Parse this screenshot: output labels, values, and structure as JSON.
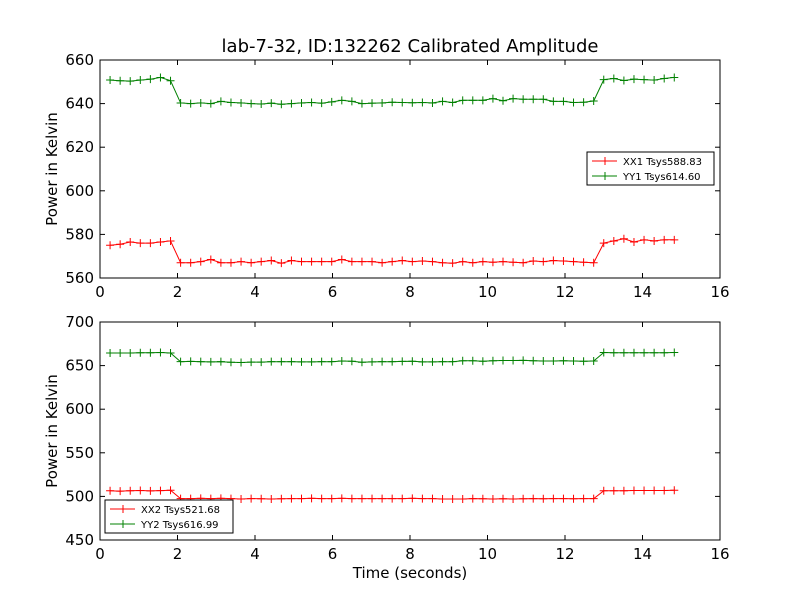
{
  "chart_data": [
    {
      "type": "line",
      "title": "lab-7-32, ID:132262 Calibrated Amplitude",
      "xlabel": "",
      "ylabel": "Power in Kelvin",
      "xlim": [
        0,
        16
      ],
      "ylim": [
        560,
        660
      ],
      "xticks": [
        "0",
        "2",
        "4",
        "6",
        "8",
        "10",
        "12",
        "14",
        "16"
      ],
      "yticks": [
        "560",
        "580",
        "600",
        "620",
        "640",
        "660"
      ],
      "legend_position": "center-right",
      "x": [
        0.26,
        0.52,
        0.78,
        1.04,
        1.3,
        1.56,
        1.82,
        2.08,
        2.34,
        2.6,
        2.86,
        3.12,
        3.38,
        3.64,
        3.9,
        4.16,
        4.42,
        4.68,
        4.94,
        5.2,
        5.46,
        5.72,
        5.98,
        6.24,
        6.5,
        6.76,
        7.02,
        7.28,
        7.54,
        7.8,
        8.06,
        8.32,
        8.58,
        8.84,
        9.1,
        9.36,
        9.62,
        9.88,
        10.14,
        10.4,
        10.66,
        10.92,
        11.18,
        11.44,
        11.7,
        11.96,
        12.22,
        12.48,
        12.74,
        13.0,
        13.26,
        13.52,
        13.78,
        14.04,
        14.3,
        14.56,
        14.82
      ],
      "series": [
        {
          "name": "XX1 Tsys588.83",
          "color": "#ff0000",
          "values": [
            575.0,
            575.5,
            576.5,
            576.0,
            576.0,
            576.5,
            577.0,
            567.0,
            567.0,
            567.5,
            568.5,
            567.0,
            567.0,
            567.5,
            567.0,
            567.5,
            568.0,
            566.8,
            568.0,
            567.5,
            567.5,
            567.5,
            567.5,
            568.5,
            567.5,
            567.5,
            567.5,
            567.0,
            567.5,
            568.0,
            567.5,
            567.8,
            567.5,
            567.0,
            566.8,
            567.5,
            567.0,
            567.5,
            567.2,
            567.5,
            567.2,
            567.0,
            567.8,
            567.5,
            568.0,
            567.8,
            567.5,
            567.2,
            567.0,
            576.0,
            577.0,
            578.0,
            576.5,
            577.5,
            577.0,
            577.5,
            577.5
          ]
        },
        {
          "name": "YY1 Tsys614.60",
          "color": "#008000",
          "values": [
            650.8,
            650.5,
            650.3,
            650.8,
            651.2,
            652.0,
            650.5,
            640.3,
            640.0,
            640.3,
            640.0,
            641.0,
            640.5,
            640.3,
            640.0,
            639.8,
            640.2,
            639.7,
            640.0,
            640.3,
            640.5,
            640.2,
            640.8,
            641.5,
            641.0,
            640.0,
            640.2,
            640.3,
            640.6,
            640.5,
            640.4,
            640.5,
            640.3,
            641.0,
            640.5,
            641.5,
            641.5,
            641.5,
            642.3,
            641.3,
            642.3,
            642.0,
            642.0,
            642.0,
            641.0,
            641.0,
            640.5,
            640.6,
            641.2,
            651.0,
            651.5,
            650.6,
            651.2,
            651.0,
            650.8,
            651.5,
            652.0
          ]
        }
      ]
    },
    {
      "type": "line",
      "title": "",
      "xlabel": "Time (seconds)",
      "ylabel": "Power in Kelvin",
      "xlim": [
        0,
        16
      ],
      "ylim": [
        450,
        700
      ],
      "xticks": [
        "0",
        "2",
        "4",
        "6",
        "8",
        "10",
        "12",
        "14",
        "16"
      ],
      "yticks": [
        "450",
        "500",
        "550",
        "600",
        "650",
        "700"
      ],
      "legend_position": "lower-left",
      "x": [
        0.26,
        0.52,
        0.78,
        1.04,
        1.3,
        1.56,
        1.82,
        2.08,
        2.34,
        2.6,
        2.86,
        3.12,
        3.38,
        3.64,
        3.9,
        4.16,
        4.42,
        4.68,
        4.94,
        5.2,
        5.46,
        5.72,
        5.98,
        6.24,
        6.5,
        6.76,
        7.02,
        7.28,
        7.54,
        7.8,
        8.06,
        8.32,
        8.58,
        8.84,
        9.1,
        9.36,
        9.62,
        9.88,
        10.14,
        10.4,
        10.66,
        10.92,
        11.18,
        11.44,
        11.7,
        11.96,
        12.22,
        12.48,
        12.74,
        13.0,
        13.26,
        13.52,
        13.78,
        14.04,
        14.3,
        14.56,
        14.82
      ],
      "series": [
        {
          "name": "XX2 Tsys521.68",
          "color": "#ff0000",
          "values": [
            506.5,
            506.0,
            506.5,
            506.8,
            506.3,
            506.6,
            507.0,
            497.5,
            497.5,
            497.8,
            497.5,
            497.8,
            497.5,
            497.0,
            497.5,
            497.3,
            497.0,
            497.3,
            497.5,
            497.5,
            497.8,
            497.5,
            497.5,
            497.8,
            497.5,
            497.5,
            497.5,
            497.5,
            497.5,
            497.5,
            497.8,
            497.5,
            497.5,
            497.0,
            497.0,
            497.0,
            497.5,
            497.3,
            497.0,
            497.3,
            497.0,
            497.3,
            497.5,
            497.3,
            497.5,
            497.5,
            497.3,
            497.5,
            497.5,
            506.5,
            506.5,
            506.5,
            506.8,
            506.8,
            506.8,
            506.8,
            507.0
          ]
        },
        {
          "name": "YY2 Tsys616.99",
          "color": "#008000",
          "values": [
            664.5,
            664.5,
            664.5,
            664.8,
            664.8,
            665.0,
            664.5,
            654.5,
            654.8,
            654.5,
            654.3,
            654.5,
            653.8,
            653.5,
            654.0,
            654.0,
            654.5,
            654.5,
            654.5,
            654.3,
            654.3,
            654.5,
            654.5,
            655.3,
            655.0,
            653.8,
            654.3,
            654.5,
            654.5,
            654.8,
            655.0,
            654.3,
            654.3,
            654.5,
            654.5,
            655.5,
            655.5,
            655.0,
            655.5,
            655.8,
            655.8,
            656.0,
            655.5,
            655.3,
            655.3,
            655.5,
            655.3,
            655.0,
            655.3,
            665.0,
            664.8,
            664.8,
            664.8,
            664.8,
            664.8,
            664.8,
            665.0
          ]
        }
      ]
    }
  ]
}
